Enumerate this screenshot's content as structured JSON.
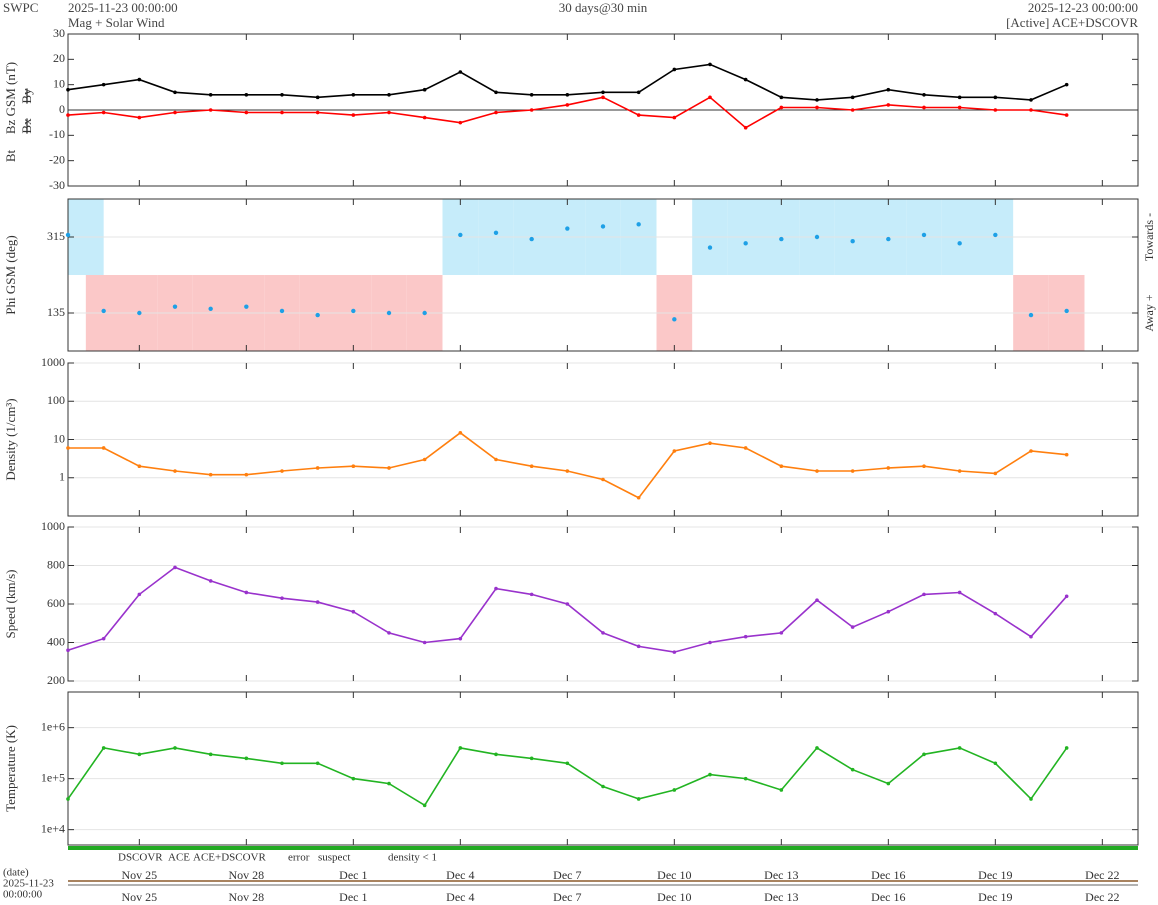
{
  "header": {
    "org": "SWPC",
    "start": "2025-11-23 00:00:00",
    "subtitle": "Mag + Solar Wind",
    "span": "30 days@30 min",
    "end": "2025-12-23 00:00:00",
    "source": "[Active] ACE+DSCOVR"
  },
  "date_axis": {
    "title": "(date)",
    "day": "2025-11-23",
    "time": "00:00:00"
  },
  "status_legend": [
    {
      "text": "DSCOVR",
      "color": "#0000cc"
    },
    {
      "text": "ACE",
      "color": "#22aa22"
    },
    {
      "text": "ACE+DSCOVR",
      "color": "#ee00ee"
    },
    {
      "text": "error",
      "color": "#ff0000"
    },
    {
      "text": "suspect",
      "color": "#ffaa00"
    },
    {
      "text": "density < 1",
      "color": "#ff7700"
    }
  ],
  "chart_data": [
    {
      "type": "line",
      "ylabel": "Bz GSM (nT)",
      "ylabel_color": "#ff0000",
      "ylabel_extra": [
        {
          "text": "Bt",
          "color": "#000000"
        },
        {
          "text": "Bx",
          "color": "#9932cc"
        },
        {
          "text": "By",
          "color": "#1ea0e6"
        }
      ],
      "x": [
        0,
        1,
        2,
        3,
        4,
        5,
        6,
        7,
        8,
        9,
        10,
        11,
        12,
        13,
        14,
        15,
        16,
        17,
        18,
        19,
        20,
        21,
        22,
        23,
        24,
        25,
        26,
        27,
        28
      ],
      "series": [
        {
          "name": "Bt",
          "color": "#000000",
          "values": [
            8,
            10,
            12,
            7,
            6,
            6,
            6,
            5,
            6,
            6,
            8,
            15,
            7,
            6,
            6,
            7,
            7,
            16,
            18,
            12,
            5,
            4,
            5,
            8,
            6,
            5,
            5,
            4,
            10
          ]
        },
        {
          "name": "Bz",
          "color": "#ff0000",
          "values": [
            -2,
            -1,
            -3,
            -1,
            0,
            -1,
            -1,
            -1,
            -2,
            -1,
            -3,
            -5,
            -1,
            0,
            2,
            5,
            -2,
            -3,
            5,
            -7,
            1,
            1,
            0,
            2,
            1,
            1,
            0,
            0,
            -2
          ]
        }
      ],
      "xlim": [
        0,
        30
      ],
      "xticks": [
        2,
        5,
        8,
        11,
        14,
        17,
        20,
        23,
        26,
        29
      ],
      "ylim": [
        -30,
        30
      ],
      "yticks": [
        -30,
        -20,
        -10,
        0,
        10,
        20,
        30
      ],
      "zero_line": true,
      "grid": false
    },
    {
      "type": "scatter",
      "ylabel": "Phi GSM (deg)",
      "ylabel_color": "#1ea0e6",
      "side_labels": [
        "Towards -",
        "Away +"
      ],
      "x": [
        0,
        1,
        2,
        3,
        4,
        5,
        6,
        7,
        8,
        9,
        10,
        11,
        12,
        13,
        14,
        15,
        16,
        17,
        18,
        19,
        20,
        21,
        22,
        23,
        24,
        25,
        26,
        27,
        28
      ],
      "series": [
        {
          "name": "Phi",
          "color": "#1ea0e6",
          "values": [
            320,
            140,
            135,
            150,
            145,
            150,
            140,
            130,
            140,
            135,
            135,
            320,
            325,
            310,
            335,
            340,
            345,
            120,
            290,
            300,
            310,
            315,
            305,
            310,
            320,
            300,
            320,
            130,
            140
          ]
        }
      ],
      "band_colors": [
        "#c6ecfa",
        "#fbc8c8"
      ],
      "xlim": [
        0,
        30
      ],
      "xticks": [
        2,
        5,
        8,
        11,
        14,
        17,
        20,
        23,
        26,
        29
      ],
      "ylim": [
        45,
        405
      ],
      "yticks": [
        135,
        315
      ],
      "grid": true
    },
    {
      "type": "line",
      "ylabel": "Density (1/cm³)",
      "ylabel_color": "#ff7f0e",
      "yscale": "log",
      "x": [
        0,
        1,
        2,
        3,
        4,
        5,
        6,
        7,
        8,
        9,
        10,
        11,
        12,
        13,
        14,
        15,
        16,
        17,
        18,
        19,
        20,
        21,
        22,
        23,
        24,
        25,
        26,
        27,
        28
      ],
      "series": [
        {
          "name": "Density",
          "color": "#ff7f0e",
          "values": [
            6,
            6,
            2,
            1.5,
            1.2,
            1.2,
            1.5,
            1.8,
            2,
            1.8,
            3,
            15,
            3,
            2,
            1.5,
            0.9,
            0.3,
            5,
            8,
            6,
            2,
            1.5,
            1.5,
            1.8,
            2,
            1.5,
            1.3,
            5,
            4
          ]
        }
      ],
      "xlim": [
        0,
        30
      ],
      "xticks": [
        2,
        5,
        8,
        11,
        14,
        17,
        20,
        23,
        26,
        29
      ],
      "ylim": [
        0.1,
        1000
      ],
      "yticks": [
        1,
        10,
        100,
        1000
      ],
      "grid": true
    },
    {
      "type": "line",
      "ylabel": "Speed (km/s)",
      "ylabel_color": "#9932cc",
      "x": [
        0,
        1,
        2,
        3,
        4,
        5,
        6,
        7,
        8,
        9,
        10,
        11,
        12,
        13,
        14,
        15,
        16,
        17,
        18,
        19,
        20,
        21,
        22,
        23,
        24,
        25,
        26,
        27,
        28
      ],
      "series": [
        {
          "name": "Speed",
          "color": "#9932cc",
          "values": [
            360,
            420,
            650,
            790,
            720,
            660,
            630,
            610,
            560,
            450,
            400,
            420,
            680,
            650,
            600,
            450,
            380,
            350,
            400,
            430,
            450,
            620,
            480,
            560,
            650,
            660,
            550,
            430,
            640
          ]
        }
      ],
      "xlim": [
        0,
        30
      ],
      "xticks": [
        2,
        5,
        8,
        11,
        14,
        17,
        20,
        23,
        26,
        29
      ],
      "ylim": [
        200,
        1000
      ],
      "yticks": [
        200,
        400,
        600,
        800,
        1000
      ],
      "grid": true
    },
    {
      "type": "line",
      "ylabel": "Temperature (K)",
      "ylabel_color": "#22b422",
      "yscale": "log",
      "x": [
        0,
        1,
        2,
        3,
        4,
        5,
        6,
        7,
        8,
        9,
        10,
        11,
        12,
        13,
        14,
        15,
        16,
        17,
        18,
        19,
        20,
        21,
        22,
        23,
        24,
        25,
        26,
        27,
        28
      ],
      "series": [
        {
          "name": "Temperature",
          "color": "#22b422",
          "values": [
            40000,
            400000,
            300000,
            400000,
            300000,
            250000,
            200000,
            200000,
            100000,
            80000,
            30000,
            400000,
            300000,
            250000,
            200000,
            70000,
            40000,
            60000,
            120000,
            100000,
            60000,
            400000,
            150000,
            80000,
            300000,
            400000,
            200000,
            40000,
            400000
          ]
        }
      ],
      "xlim": [
        0,
        30
      ],
      "xticks": [
        {
          "value": 2,
          "label": "Nov 25"
        },
        {
          "value": 5,
          "label": "Nov 28"
        },
        {
          "value": 8,
          "label": "Dec 1"
        },
        {
          "value": 11,
          "label": "Dec 4"
        },
        {
          "value": 14,
          "label": "Dec 7"
        },
        {
          "value": 17,
          "label": "Dec 10"
        },
        {
          "value": 20,
          "label": "Dec 13"
        },
        {
          "value": 23,
          "label": "Dec 16"
        },
        {
          "value": 26,
          "label": "Dec 19"
        },
        {
          "value": 29,
          "label": "Dec 22"
        }
      ],
      "ylim": [
        5000,
        5000000
      ],
      "yticks": [
        {
          "value": 10000,
          "label": "1e+4"
        },
        {
          "value": 100000,
          "label": "1e+5"
        },
        {
          "value": 1000000,
          "label": "1e+6"
        }
      ],
      "grid": true
    }
  ]
}
